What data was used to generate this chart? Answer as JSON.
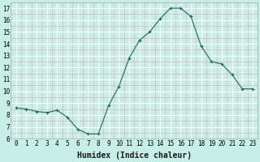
{
  "x": [
    0,
    1,
    2,
    3,
    4,
    5,
    6,
    7,
    8,
    9,
    10,
    11,
    12,
    13,
    14,
    15,
    16,
    17,
    18,
    19,
    20,
    21,
    22,
    23
  ],
  "y": [
    8.6,
    8.5,
    8.3,
    8.2,
    8.4,
    7.8,
    6.8,
    6.4,
    6.4,
    8.8,
    10.4,
    12.8,
    14.3,
    15.0,
    16.1,
    17.0,
    17.0,
    16.3,
    13.8,
    12.5,
    12.3,
    11.4,
    10.2,
    10.2
  ],
  "xlabel": "Humidex (Indice chaleur)",
  "line_color": "#1a6b5a",
  "marker": "+",
  "marker_color": "#1a6b5a",
  "bg_color": "#c8eee8",
  "major_grid_color": "#ffffff",
  "minor_grid_color": "#d8b8b8",
  "ylim": [
    6,
    17.5
  ],
  "xlim": [
    -0.5,
    23.5
  ],
  "yticks": [
    6,
    7,
    8,
    9,
    10,
    11,
    12,
    13,
    14,
    15,
    16,
    17
  ],
  "xticks": [
    0,
    1,
    2,
    3,
    4,
    5,
    6,
    7,
    8,
    9,
    10,
    11,
    12,
    13,
    14,
    15,
    16,
    17,
    18,
    19,
    20,
    21,
    22,
    23
  ],
  "tick_fontsize": 5.5,
  "label_fontsize": 7
}
